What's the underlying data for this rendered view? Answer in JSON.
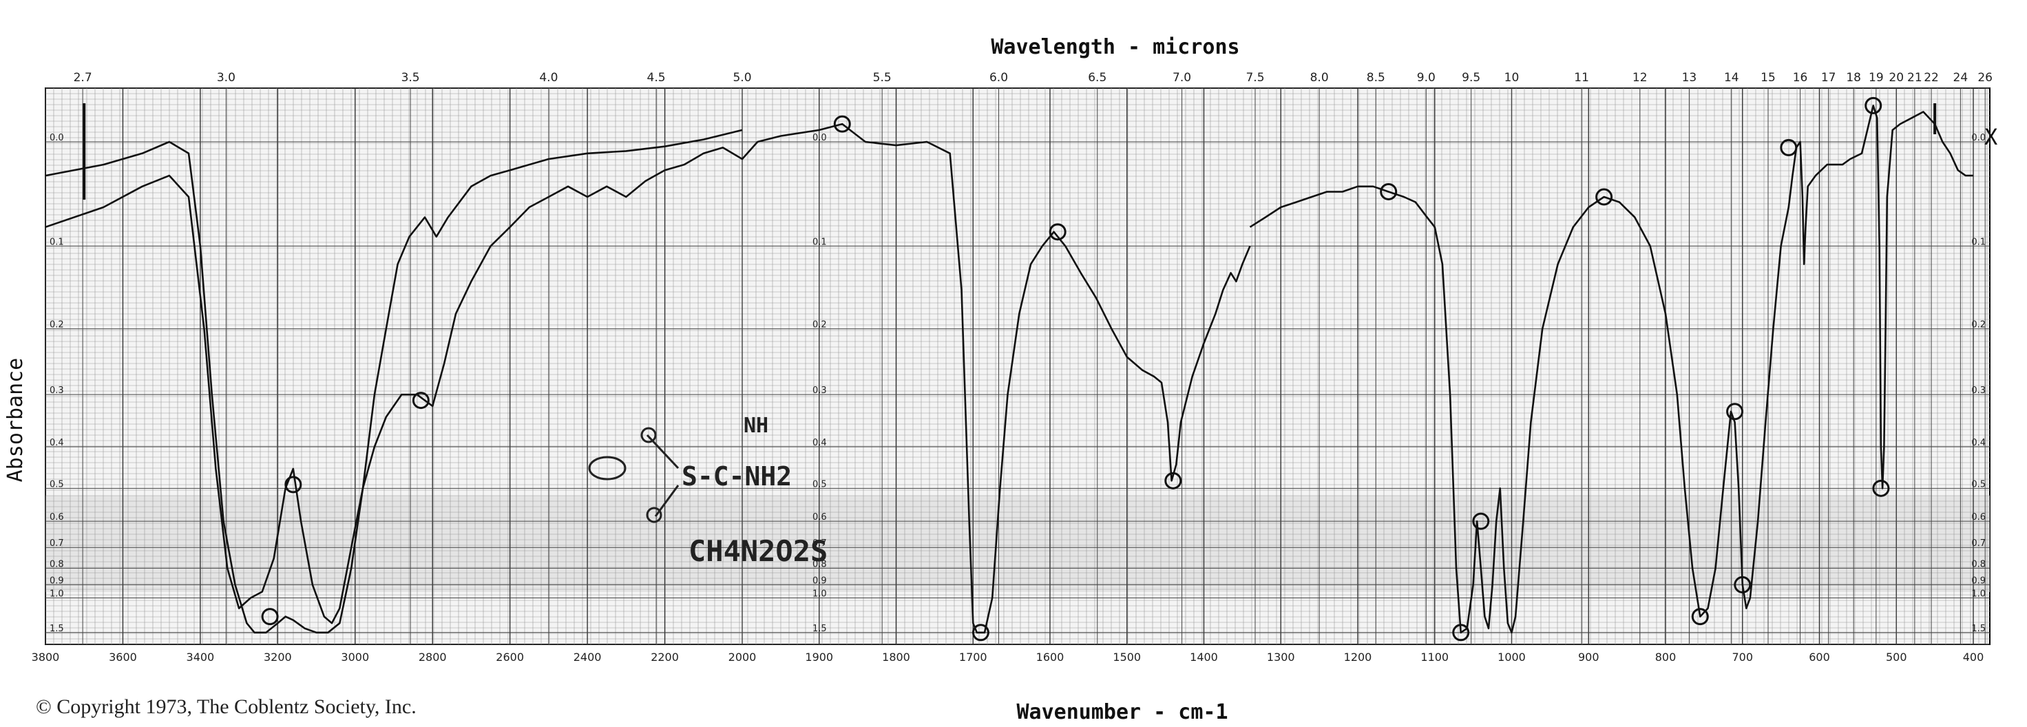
{
  "chart_data": {
    "type": "line",
    "title": "Wavelength - microns",
    "xlabel": "Wavenumber - cm-1",
    "ylabel": "Absorbance",
    "copyright": "© Copyright 1973, The Coblentz Society, Inc.",
    "marker": "X",
    "wavenumber_ticks": [
      "3800",
      "3600",
      "3400",
      "3200",
      "3000",
      "2800",
      "2600",
      "2400",
      "2200",
      "2000",
      "1900",
      "1800",
      "1700",
      "1600",
      "1500",
      "1400",
      "1300",
      "1200",
      "1100",
      "1000",
      "900",
      "800",
      "700",
      "600",
      "500",
      "400"
    ],
    "wavelength_ticks": [
      "2.7",
      "3.0",
      "3.5",
      "4.0",
      "4.5",
      "5.0",
      "5.5",
      "6.0",
      "6.5",
      "7.0",
      "7.5",
      "8.0",
      "8.5",
      "9.0",
      "9.5",
      "10",
      "11",
      "12",
      "13",
      "14",
      "15",
      "16",
      "17",
      "18",
      "19",
      "20",
      "21",
      "22",
      "24",
      "26"
    ],
    "absorbance_ticks": [
      "0.0",
      "0.1",
      "0.2",
      "0.3",
      "0.4",
      "0.5",
      "0.6",
      "0.7",
      "0.8",
      "0.9",
      "1.0",
      "1.5"
    ],
    "annotation": {
      "structure_top": "NH",
      "structure_mid": "S-C-NH2",
      "formula": "CH4N2O2S"
    },
    "series": [
      {
        "values": [
          [
            3800,
            0.03
          ],
          [
            3650,
            0.02
          ],
          [
            3550,
            0.01
          ],
          [
            3480,
            0.0
          ],
          [
            3430,
            0.01
          ],
          [
            3400,
            0.1
          ],
          [
            3370,
            0.3
          ],
          [
            3340,
            0.6
          ],
          [
            3310,
            0.9
          ],
          [
            3280,
            1.3
          ],
          [
            3260,
            1.5
          ],
          [
            3230,
            1.5
          ],
          [
            3200,
            1.3
          ],
          [
            3180,
            1.2
          ],
          [
            3160,
            1.25
          ],
          [
            3130,
            1.4
          ],
          [
            3100,
            1.5
          ],
          [
            3070,
            1.5
          ],
          [
            3040,
            1.3
          ],
          [
            3010,
            0.8
          ],
          [
            2980,
            0.5
          ],
          [
            2950,
            0.3
          ],
          [
            2920,
            0.2
          ],
          [
            2890,
            0.12
          ],
          [
            2860,
            0.09
          ],
          [
            2820,
            0.07
          ],
          [
            2790,
            0.09
          ],
          [
            2760,
            0.07
          ],
          [
            2700,
            0.04
          ],
          [
            2650,
            0.03
          ],
          [
            2600,
            0.025
          ],
          [
            2500,
            0.015
          ],
          [
            2400,
            0.01
          ],
          [
            2300,
            0.008
          ],
          [
            2200,
            0.004
          ],
          [
            2100,
            -0.002
          ],
          [
            2000,
            -0.01
          ]
        ]
      },
      {
        "values": [
          [
            3800,
            0.08
          ],
          [
            3650,
            0.06
          ],
          [
            3550,
            0.04
          ],
          [
            3480,
            0.03
          ],
          [
            3430,
            0.05
          ],
          [
            3390,
            0.2
          ],
          [
            3360,
            0.45
          ],
          [
            3330,
            0.8
          ],
          [
            3300,
            1.1
          ],
          [
            3270,
            1.0
          ],
          [
            3240,
            0.95
          ],
          [
            3210,
            0.75
          ],
          [
            3180,
            0.5
          ],
          [
            3160,
            0.45
          ],
          [
            3140,
            0.6
          ],
          [
            3110,
            0.9
          ],
          [
            3080,
            1.2
          ],
          [
            3060,
            1.3
          ],
          [
            3040,
            1.1
          ],
          [
            3010,
            0.7
          ],
          [
            2980,
            0.5
          ],
          [
            2950,
            0.4
          ],
          [
            2920,
            0.34
          ],
          [
            2880,
            0.3
          ],
          [
            2840,
            0.3
          ],
          [
            2800,
            0.32
          ],
          [
            2770,
            0.25
          ],
          [
            2740,
            0.18
          ],
          [
            2700,
            0.14
          ],
          [
            2650,
            0.1
          ],
          [
            2600,
            0.08
          ],
          [
            2550,
            0.06
          ],
          [
            2500,
            0.05
          ],
          [
            2450,
            0.04
          ],
          [
            2400,
            0.05
          ],
          [
            2350,
            0.04
          ],
          [
            2300,
            0.05
          ],
          [
            2250,
            0.035
          ],
          [
            2200,
            0.025
          ],
          [
            2150,
            0.02
          ],
          [
            2100,
            0.01
          ],
          [
            2050,
            0.005
          ],
          [
            2000,
            0.015
          ],
          [
            1980,
            0.0
          ],
          [
            1950,
            -0.005
          ],
          [
            1900,
            -0.01
          ],
          [
            1870,
            -0.015
          ],
          [
            1840,
            0.0
          ],
          [
            1800,
            0.003
          ],
          [
            1760,
            0.0
          ],
          [
            1730,
            0.01
          ],
          [
            1715,
            0.15
          ],
          [
            1705,
            0.6
          ],
          [
            1700,
            1.3
          ],
          [
            1695,
            1.5
          ],
          [
            1685,
            1.5
          ],
          [
            1675,
            1.0
          ],
          [
            1665,
            0.5
          ],
          [
            1655,
            0.3
          ],
          [
            1640,
            0.18
          ],
          [
            1625,
            0.12
          ],
          [
            1610,
            0.1
          ],
          [
            1595,
            0.085
          ],
          [
            1580,
            0.1
          ],
          [
            1560,
            0.13
          ],
          [
            1540,
            0.16
          ],
          [
            1520,
            0.2
          ],
          [
            1500,
            0.24
          ],
          [
            1480,
            0.26
          ],
          [
            1465,
            0.27
          ],
          [
            1455,
            0.28
          ],
          [
            1447,
            0.35
          ],
          [
            1442,
            0.48
          ],
          [
            1436,
            0.44
          ],
          [
            1430,
            0.35
          ],
          [
            1415,
            0.27
          ],
          [
            1400,
            0.22
          ],
          [
            1385,
            0.18
          ],
          [
            1375,
            0.15
          ],
          [
            1365,
            0.13
          ],
          [
            1358,
            0.14
          ],
          [
            1350,
            0.12
          ],
          [
            1340,
            0.1
          ]
        ]
      },
      {
        "values": [
          [
            1340,
            0.08
          ],
          [
            1320,
            0.07
          ],
          [
            1300,
            0.06
          ],
          [
            1280,
            0.055
          ],
          [
            1260,
            0.05
          ],
          [
            1240,
            0.045
          ],
          [
            1220,
            0.045
          ],
          [
            1200,
            0.04
          ],
          [
            1180,
            0.04
          ],
          [
            1160,
            0.045
          ],
          [
            1140,
            0.05
          ],
          [
            1125,
            0.055
          ],
          [
            1110,
            0.07
          ],
          [
            1100,
            0.08
          ],
          [
            1090,
            0.12
          ],
          [
            1080,
            0.3
          ],
          [
            1072,
            0.8
          ],
          [
            1066,
            1.5
          ],
          [
            1058,
            1.4
          ],
          [
            1050,
            0.9
          ],
          [
            1045,
            0.6
          ],
          [
            1040,
            0.8
          ],
          [
            1035,
            1.2
          ],
          [
            1030,
            1.4
          ],
          [
            1025,
            0.9
          ],
          [
            1020,
            0.6
          ],
          [
            1015,
            0.5
          ],
          [
            1010,
            0.8
          ],
          [
            1005,
            1.3
          ],
          [
            1000,
            1.5
          ],
          [
            995,
            1.2
          ],
          [
            985,
            0.6
          ],
          [
            975,
            0.35
          ],
          [
            960,
            0.2
          ],
          [
            940,
            0.12
          ],
          [
            920,
            0.08
          ],
          [
            900,
            0.06
          ],
          [
            880,
            0.05
          ],
          [
            860,
            0.055
          ],
          [
            840,
            0.07
          ],
          [
            820,
            0.1
          ],
          [
            800,
            0.18
          ],
          [
            785,
            0.3
          ],
          [
            775,
            0.5
          ],
          [
            765,
            0.8
          ],
          [
            755,
            1.2
          ],
          [
            745,
            1.1
          ],
          [
            735,
            0.8
          ],
          [
            725,
            0.5
          ],
          [
            715,
            0.33
          ],
          [
            710,
            0.35
          ],
          [
            705,
            0.5
          ],
          [
            700,
            0.9
          ],
          [
            695,
            1.1
          ],
          [
            690,
            1.0
          ],
          [
            680,
            0.6
          ],
          [
            670,
            0.35
          ],
          [
            660,
            0.2
          ],
          [
            650,
            0.1
          ],
          [
            640,
            0.06
          ],
          [
            635,
            0.03
          ],
          [
            630,
            0.005
          ],
          [
            625,
            0.0
          ],
          [
            622,
            0.05
          ],
          [
            620,
            0.12
          ],
          [
            618,
            0.08
          ],
          [
            615,
            0.04
          ],
          [
            605,
            0.03
          ],
          [
            590,
            0.02
          ],
          [
            570,
            0.02
          ],
          [
            560,
            0.015
          ],
          [
            545,
            0.01
          ],
          [
            530,
            -0.03
          ],
          [
            525,
            -0.02
          ],
          [
            522,
            0.1
          ],
          [
            520,
            0.4
          ],
          [
            518,
            0.5
          ],
          [
            516,
            0.4
          ],
          [
            514,
            0.2
          ],
          [
            512,
            0.05
          ],
          [
            505,
            -0.01
          ],
          [
            495,
            -0.015
          ],
          [
            480,
            -0.02
          ],
          [
            465,
            -0.025
          ],
          [
            450,
            -0.015
          ],
          [
            440,
            0.0
          ],
          [
            430,
            0.01
          ],
          [
            420,
            0.025
          ],
          [
            410,
            0.03
          ],
          [
            400,
            0.03
          ]
        ]
      }
    ],
    "circled_points": [
      [
        3220,
        1.2
      ],
      [
        3160,
        0.49
      ],
      [
        2830,
        0.31
      ],
      [
        1870,
        -0.015
      ],
      [
        1690,
        1.5
      ],
      [
        1590,
        0.085
      ],
      [
        1440,
        0.48
      ],
      [
        1160,
        0.045
      ],
      [
        1066,
        1.5
      ],
      [
        1040,
        0.6
      ],
      [
        880,
        0.05
      ],
      [
        755,
        1.2
      ],
      [
        700,
        0.9
      ],
      [
        710,
        0.33
      ],
      [
        640,
        0.005
      ],
      [
        530,
        -0.03
      ],
      [
        520,
        0.5
      ]
    ]
  }
}
